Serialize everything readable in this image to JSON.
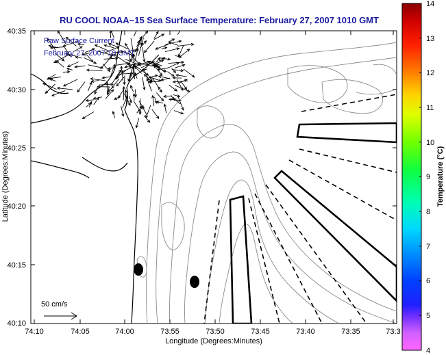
{
  "title": "RU COOL  NOAA−15  Sea Surface Temperature:  February 27, 2007 1010 GMT",
  "legend": {
    "line1": "Raw Surface Current",
    "line2": "February 27, 2007 10 GMT"
  },
  "scale_label": "50 cm/s",
  "x_axis": {
    "label": "Longitude (Degrees:Minutes)",
    "ticks": [
      "74:10",
      "74:05",
      "74:00",
      "73:55",
      "73:50",
      "73:45",
      "73:40",
      "73:35",
      "73:3"
    ]
  },
  "y_axis": {
    "label": "Latitude (Degrees:Minutes)",
    "ticks": [
      "40:35",
      "40:30",
      "40:25",
      "40:20",
      "40:15",
      "40:10"
    ]
  },
  "colorbar": {
    "label": "Temperature (°C)",
    "min": 4,
    "max": 14,
    "ticks": [
      "14",
      "13",
      "12",
      "11",
      "10",
      "9",
      "8",
      "7",
      "6",
      "5",
      "4"
    ]
  },
  "icons": [
    "current-vector-arrow",
    "buoy-marker"
  ]
}
